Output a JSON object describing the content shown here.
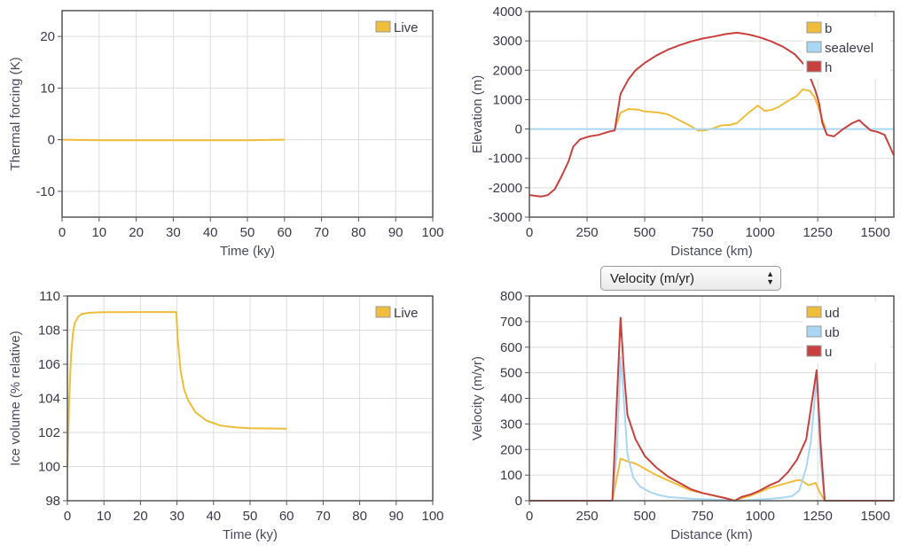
{
  "colors": {
    "yellow": "#f0bd3a",
    "lightblue": "#a9d6f2",
    "red": "#c8413f",
    "grid": "#dcdcdc",
    "axis": "#555555"
  },
  "velocity_select": {
    "value": "Velocity (m/yr)",
    "icon": "updown-chevron-icon"
  },
  "chart_data": [
    {
      "id": "thermal",
      "type": "line",
      "xlabel": "Time (ky)",
      "ylabel": "Thermal forcing (K)",
      "xlim": [
        0,
        100
      ],
      "ylim": [
        -15,
        25
      ],
      "xticks": [
        0,
        10,
        20,
        30,
        40,
        50,
        60,
        70,
        80,
        90,
        100
      ],
      "yticks": [
        -10,
        0,
        10,
        20
      ],
      "grid": true,
      "legend_position": "top-right",
      "series": [
        {
          "name": "Live",
          "color": "#f0bd3a",
          "points": [
            [
              0,
              0
            ],
            [
              10,
              -0.1
            ],
            [
              20,
              -0.1
            ],
            [
              30,
              -0.1
            ],
            [
              40,
              -0.1
            ],
            [
              50,
              -0.1
            ],
            [
              60,
              0
            ]
          ]
        }
      ]
    },
    {
      "id": "elevation",
      "type": "line",
      "xlabel": "Distance (km)",
      "ylabel": "Elevation (m)",
      "xlim": [
        0,
        1580
      ],
      "ylim": [
        -3000,
        4000
      ],
      "xticks": [
        0,
        250,
        500,
        750,
        1000,
        1250,
        1500
      ],
      "yticks": [
        -3000,
        -2000,
        -1000,
        0,
        1000,
        2000,
        3000,
        4000
      ],
      "grid": true,
      "legend_position": "top-right",
      "series": [
        {
          "name": "b",
          "color": "#f0bd3a",
          "points": [
            [
              370,
              0
            ],
            [
              395,
              550
            ],
            [
              430,
              680
            ],
            [
              470,
              660
            ],
            [
              500,
              600
            ],
            [
              560,
              560
            ],
            [
              600,
              500
            ],
            [
              650,
              300
            ],
            [
              700,
              100
            ],
            [
              730,
              -50
            ],
            [
              760,
              -50
            ],
            [
              800,
              30
            ],
            [
              830,
              120
            ],
            [
              870,
              140
            ],
            [
              900,
              200
            ],
            [
              950,
              550
            ],
            [
              990,
              800
            ],
            [
              1020,
              620
            ],
            [
              1050,
              650
            ],
            [
              1080,
              750
            ],
            [
              1120,
              950
            ],
            [
              1160,
              1130
            ],
            [
              1185,
              1350
            ],
            [
              1215,
              1300
            ],
            [
              1235,
              1100
            ],
            [
              1255,
              700
            ],
            [
              1270,
              300
            ],
            [
              1285,
              0
            ]
          ]
        },
        {
          "name": "sealevel",
          "color": "#a9d6f2",
          "points": [
            [
              0,
              0
            ],
            [
              1580,
              0
            ]
          ]
        },
        {
          "name": "h",
          "color": "#c8413f",
          "points": [
            [
              0,
              -2250
            ],
            [
              50,
              -2300
            ],
            [
              80,
              -2250
            ],
            [
              110,
              -2050
            ],
            [
              140,
              -1600
            ],
            [
              170,
              -1100
            ],
            [
              190,
              -600
            ],
            [
              220,
              -350
            ],
            [
              260,
              -250
            ],
            [
              300,
              -200
            ],
            [
              340,
              -100
            ],
            [
              370,
              -50
            ],
            [
              395,
              1200
            ],
            [
              430,
              1700
            ],
            [
              460,
              2000
            ],
            [
              500,
              2250
            ],
            [
              550,
              2500
            ],
            [
              600,
              2700
            ],
            [
              650,
              2850
            ],
            [
              700,
              2980
            ],
            [
              750,
              3080
            ],
            [
              800,
              3150
            ],
            [
              850,
              3230
            ],
            [
              900,
              3280
            ],
            [
              950,
              3220
            ],
            [
              1000,
              3120
            ],
            [
              1050,
              2980
            ],
            [
              1100,
              2800
            ],
            [
              1150,
              2550
            ],
            [
              1190,
              2200
            ],
            [
              1210,
              1900
            ],
            [
              1240,
              1300
            ],
            [
              1255,
              900
            ],
            [
              1270,
              200
            ],
            [
              1290,
              -200
            ],
            [
              1320,
              -250
            ],
            [
              1360,
              0
            ],
            [
              1400,
              200
            ],
            [
              1430,
              300
            ],
            [
              1450,
              150
            ],
            [
              1480,
              -50
            ],
            [
              1510,
              -100
            ],
            [
              1540,
              -200
            ],
            [
              1580,
              -900
            ]
          ]
        }
      ]
    },
    {
      "id": "icevolume",
      "type": "line",
      "xlabel": "Time (ky)",
      "ylabel": "Ice volume (% relative)",
      "xlim": [
        0,
        100
      ],
      "ylim": [
        98,
        110
      ],
      "xticks": [
        0,
        10,
        20,
        30,
        40,
        50,
        60,
        70,
        80,
        90,
        100
      ],
      "yticks": [
        98,
        100,
        102,
        104,
        106,
        108,
        110
      ],
      "grid": true,
      "legend_position": "top-right",
      "series": [
        {
          "name": "Live",
          "color": "#f0bd3a",
          "points": [
            [
              0,
              100
            ],
            [
              0.5,
              104
            ],
            [
              1,
              106.5
            ],
            [
              1.5,
              107.8
            ],
            [
              2,
              108.4
            ],
            [
              3,
              108.8
            ],
            [
              4,
              108.95
            ],
            [
              6,
              109.02
            ],
            [
              10,
              109.05
            ],
            [
              20,
              109.06
            ],
            [
              29.8,
              109.06
            ],
            [
              30.2,
              107.5
            ],
            [
              31,
              105.6
            ],
            [
              32,
              104.5
            ],
            [
              33,
              103.9
            ],
            [
              35,
              103.2
            ],
            [
              38,
              102.7
            ],
            [
              42,
              102.4
            ],
            [
              46,
              102.3
            ],
            [
              50,
              102.25
            ],
            [
              60,
              102.22
            ]
          ]
        }
      ]
    },
    {
      "id": "velocity",
      "type": "line",
      "xlabel": "Distance (km)",
      "ylabel": "Velocity (m/yr)",
      "xlim": [
        0,
        1580
      ],
      "ylim": [
        0,
        800
      ],
      "xticks": [
        0,
        250,
        500,
        750,
        1000,
        1250,
        1500
      ],
      "yticks": [
        0,
        100,
        200,
        300,
        400,
        500,
        600,
        700,
        800
      ],
      "grid": true,
      "legend_position": "top-right",
      "series": [
        {
          "name": "ud",
          "color": "#f0bd3a",
          "points": [
            [
              0,
              0
            ],
            [
              360,
              0
            ],
            [
              395,
              165
            ],
            [
              420,
              155
            ],
            [
              460,
              145
            ],
            [
              500,
              125
            ],
            [
              550,
              100
            ],
            [
              600,
              80
            ],
            [
              650,
              60
            ],
            [
              700,
              40
            ],
            [
              750,
              30
            ],
            [
              800,
              20
            ],
            [
              850,
              10
            ],
            [
              890,
              0
            ],
            [
              920,
              10
            ],
            [
              960,
              20
            ],
            [
              1000,
              35
            ],
            [
              1040,
              50
            ],
            [
              1080,
              60
            ],
            [
              1120,
              70
            ],
            [
              1160,
              80
            ],
            [
              1180,
              80
            ],
            [
              1210,
              60
            ],
            [
              1240,
              70
            ],
            [
              1260,
              30
            ],
            [
              1280,
              0
            ],
            [
              1580,
              0
            ]
          ]
        },
        {
          "name": "ub",
          "color": "#a9d6f2",
          "points": [
            [
              0,
              0
            ],
            [
              360,
              0
            ],
            [
              380,
              200
            ],
            [
              395,
              560
            ],
            [
              405,
              450
            ],
            [
              425,
              180
            ],
            [
              450,
              90
            ],
            [
              480,
              55
            ],
            [
              520,
              35
            ],
            [
              560,
              22
            ],
            [
              600,
              15
            ],
            [
              700,
              8
            ],
            [
              800,
              4
            ],
            [
              880,
              1
            ],
            [
              900,
              0
            ],
            [
              950,
              2
            ],
            [
              1000,
              5
            ],
            [
              1050,
              8
            ],
            [
              1100,
              12
            ],
            [
              1140,
              18
            ],
            [
              1170,
              40
            ],
            [
              1200,
              130
            ],
            [
              1220,
              230
            ],
            [
              1245,
              480
            ],
            [
              1262,
              160
            ],
            [
              1280,
              0
            ],
            [
              1580,
              0
            ]
          ]
        },
        {
          "name": "u",
          "color": "#c8413f",
          "points": [
            [
              0,
              0
            ],
            [
              360,
              0
            ],
            [
              395,
              715
            ],
            [
              410,
              500
            ],
            [
              425,
              335
            ],
            [
              460,
              240
            ],
            [
              500,
              175
            ],
            [
              550,
              130
            ],
            [
              600,
              95
            ],
            [
              650,
              70
            ],
            [
              700,
              45
            ],
            [
              750,
              30
            ],
            [
              800,
              20
            ],
            [
              850,
              10
            ],
            [
              890,
              0
            ],
            [
              920,
              15
            ],
            [
              960,
              25
            ],
            [
              1000,
              40
            ],
            [
              1040,
              60
            ],
            [
              1080,
              75
            ],
            [
              1120,
              110
            ],
            [
              1160,
              160
            ],
            [
              1200,
              240
            ],
            [
              1245,
              510
            ],
            [
              1262,
              230
            ],
            [
              1280,
              0
            ],
            [
              1580,
              0
            ]
          ]
        }
      ]
    }
  ]
}
